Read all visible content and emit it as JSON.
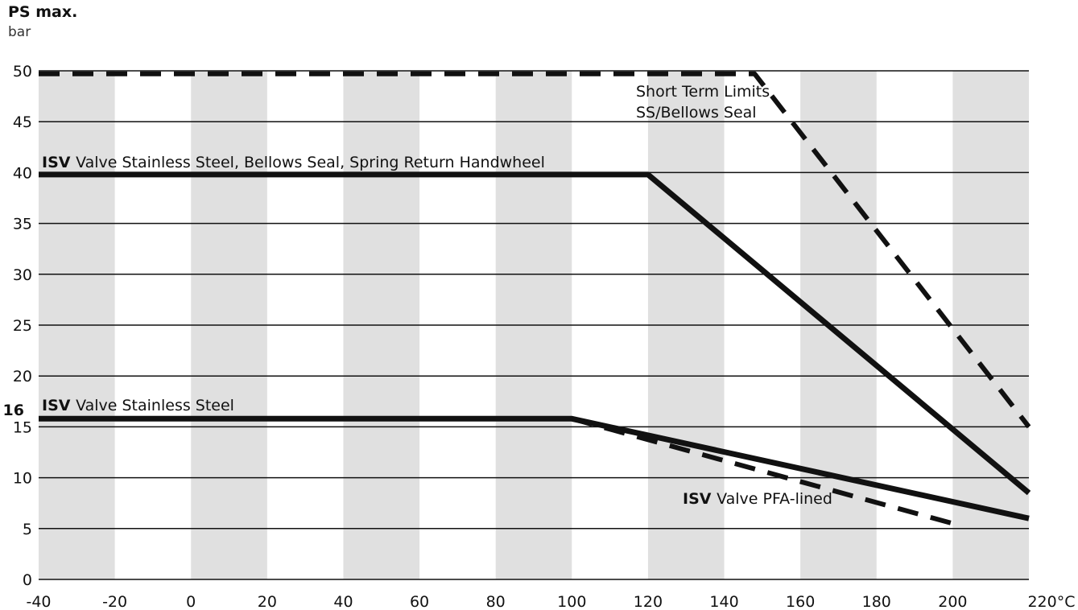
{
  "chart_data": {
    "type": "line",
    "title": "PS max.",
    "ylabel": "bar",
    "xlabel": "",
    "x_unit": "°C",
    "xlim": [
      -40,
      220
    ],
    "ylim": [
      0,
      50
    ],
    "x_ticks": [
      -40,
      -20,
      0,
      20,
      40,
      60,
      80,
      100,
      120,
      140,
      160,
      180,
      200,
      220
    ],
    "x_tick_labels": [
      "-40",
      "-20",
      "0",
      "20",
      "40",
      "60",
      "80",
      "100",
      "120",
      "140",
      "160",
      "180",
      "200",
      "220°C"
    ],
    "y_ticks": [
      0,
      5,
      10,
      15,
      20,
      25,
      30,
      35,
      40,
      45,
      50
    ],
    "y_tick_labels": [
      "0",
      "5",
      "10",
      "15",
      "20",
      "25",
      "30",
      "35",
      "40",
      "45",
      "50"
    ],
    "y_extra_tick": {
      "value": 16,
      "label": "16"
    },
    "grid": "horizontal lines with alternating grey vertical bands every 20 °C",
    "colors": {
      "band": "#e0e0e0",
      "line": "#111111",
      "grid": "#111111"
    },
    "series": [
      {
        "name_prefix": "ISV",
        "name": "Valve Stainless Steel, Bellows Seal, Spring Return Handwheel",
        "style": "solid",
        "x": [
          -40,
          120,
          220
        ],
        "y": [
          39.8,
          39.8,
          8.5
        ]
      },
      {
        "name_prefix": "ISV",
        "name": "Valve Stainless Steel",
        "style": "solid",
        "x": [
          -40,
          100,
          220
        ],
        "y": [
          15.8,
          15.8,
          6.0
        ]
      },
      {
        "name": "Short Term Limits SS/Bellows Seal",
        "name_lines": [
          "Short Term Limits",
          "SS/Bellows Seal"
        ],
        "style": "dashed",
        "x": [
          -40,
          148,
          220
        ],
        "y": [
          49.7,
          49.7,
          15.0
        ]
      },
      {
        "name_prefix": "ISV",
        "name": "Valve PFA-lined",
        "style": "dashed",
        "x": [
          100,
          200
        ],
        "y": [
          15.8,
          5.5
        ]
      }
    ]
  }
}
